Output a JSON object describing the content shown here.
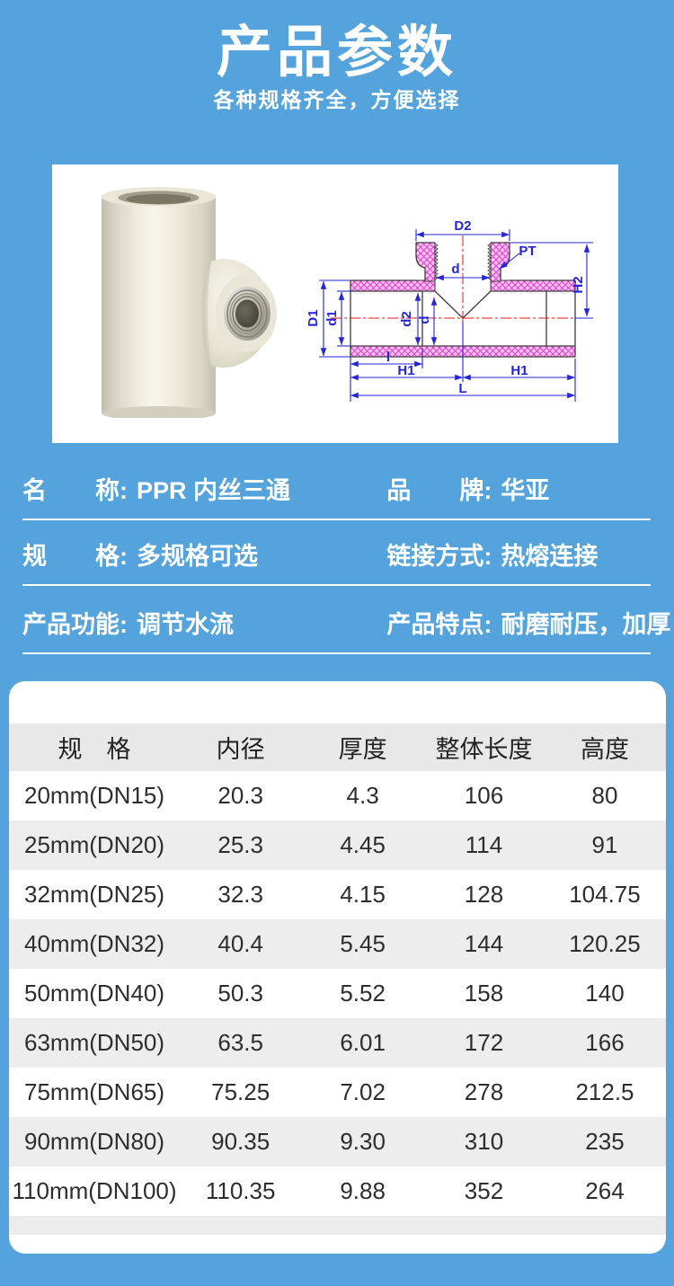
{
  "theme": {
    "background_blue": "#55a3dd",
    "card_white": "#ffffff",
    "table_header_gray": "#e8e8e8",
    "table_alt_row_gray": "#ededed",
    "table_footer_gray": "#ececec",
    "text_dark": "#2d2d2d",
    "dimension_blue": "#2424d8",
    "centerline_red": "#e81414",
    "hatch_pink": "#ffc4f2"
  },
  "header": {
    "title": "产品参数",
    "subtitle": "各种规格齐全，方便选择"
  },
  "drawing": {
    "labels": {
      "D2": "D2",
      "PT": "PT",
      "H2": "H2",
      "D1": "D1",
      "d1": "d1",
      "d2": "d2",
      "d_top": "d",
      "d_side": "d",
      "l": "l",
      "H1_left": "H1",
      "H1_right": "H1",
      "L": "L"
    }
  },
  "info_fields": {
    "rows": [
      {
        "cells": [
          {
            "label": "名　　称:",
            "value": "PPR 内丝三通"
          },
          {
            "label": "品　　牌:",
            "value": "华亚"
          }
        ]
      },
      {
        "cells": [
          {
            "label": "规　　格:",
            "value": "多规格可选"
          },
          {
            "label": "链接方式:",
            "value": "热熔连接"
          }
        ]
      },
      {
        "cells": [
          {
            "label": "产品功能:",
            "value": "调节水流"
          },
          {
            "label": "产品特点:",
            "value": "耐磨耐压，加厚"
          }
        ]
      }
    ]
  },
  "spec_table": {
    "columns": [
      "规　格",
      "内径",
      "厚度",
      "整体长度",
      "高度"
    ],
    "rows": [
      [
        "20mm(DN15)",
        "20.3",
        "4.3",
        "106",
        "80"
      ],
      [
        "25mm(DN20)",
        "25.3",
        "4.45",
        "114",
        "91"
      ],
      [
        "32mm(DN25)",
        "32.3",
        "4.15",
        "128",
        "104.75"
      ],
      [
        "40mm(DN32)",
        "40.4",
        "5.45",
        "144",
        "120.25"
      ],
      [
        "50mm(DN40)",
        "50.3",
        "5.52",
        "158",
        "140"
      ],
      [
        "63mm(DN50)",
        "63.5",
        "6.01",
        "172",
        "166"
      ],
      [
        "75mm(DN65)",
        "75.25",
        "7.02",
        "278",
        "212.5"
      ],
      [
        "90mm(DN80)",
        "90.35",
        "9.30",
        "310",
        "235"
      ],
      [
        "110mm(DN100)",
        "110.35",
        "9.88",
        "352",
        "264"
      ]
    ]
  }
}
